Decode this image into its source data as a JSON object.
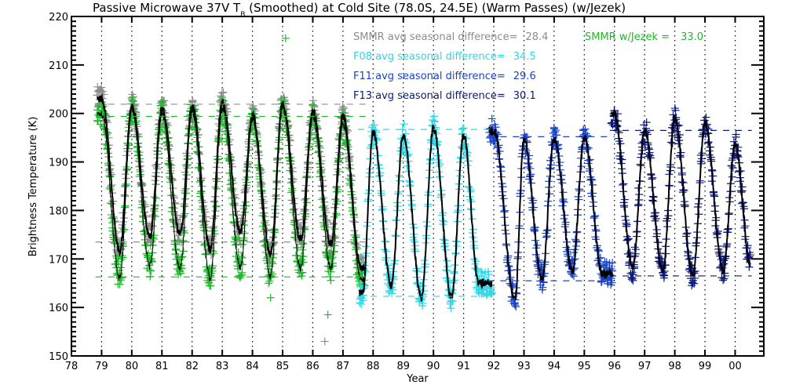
{
  "chart_data": {
    "type": "scatter",
    "title": "Passive Microwave 37V T",
    "title_subscript": "B",
    "title_rest": " (Smoothed) at Cold Site (78.0S, 24.5E) (Warm Passes) (w/Jezek)",
    "xlabel": "Year",
    "ylabel": "Brightness Temperature (K)",
    "xlim": [
      78,
      100.95
    ],
    "ylim": [
      150,
      220
    ],
    "grid": "vertical-dotted-at-years",
    "x_tick_labels": [
      "78",
      "79",
      "80",
      "81",
      "82",
      "83",
      "84",
      "85",
      "86",
      "87",
      "88",
      "89",
      "90",
      "91",
      "92",
      "93",
      "94",
      "95",
      "96",
      "97",
      "98",
      "99",
      "00"
    ],
    "y_tick_labels": [
      "150",
      "160",
      "170",
      "180",
      "190",
      "200",
      "210",
      "220"
    ],
    "y_ticks": [
      150,
      160,
      170,
      180,
      190,
      200,
      210,
      220
    ],
    "legend": [
      {
        "label": "SMMR avg seasonal difference=",
        "value": "28.4",
        "color": "#8c8c8c"
      },
      {
        "label": "SMMR w/Jezek =",
        "value": "33.0",
        "color": "#1fb82b"
      },
      {
        "label": "F08 avg seasonal difference=",
        "value": "34.5",
        "color": "#2fd6e6"
      },
      {
        "label": "F11 avg seasonal difference=",
        "value": "29.6",
        "color": "#1a44c4"
      },
      {
        "label": "F13 avg seasonal difference=",
        "value": "30.1",
        "color": "#0c1a80"
      }
    ],
    "series": [
      {
        "name": "SMMR",
        "color": "#8c8c8c",
        "x_range": [
          78.85,
          87.7
        ],
        "peaks": [
          [
            79.0,
            203
          ],
          [
            80.0,
            201.5
          ],
          [
            81.0,
            201
          ],
          [
            82.0,
            201.5
          ],
          [
            83.0,
            202.5
          ],
          [
            84.0,
            199.5
          ],
          [
            85.0,
            202
          ],
          [
            86.0,
            200.5
          ],
          [
            87.0,
            199.5
          ]
        ],
        "troughs": [
          [
            79.6,
            171.5
          ],
          [
            80.6,
            174.5
          ],
          [
            81.6,
            175
          ],
          [
            82.6,
            172
          ],
          [
            83.6,
            175.5
          ],
          [
            84.6,
            171
          ],
          [
            85.6,
            174
          ],
          [
            86.6,
            173
          ],
          [
            87.6,
            168
          ]
        ],
        "outliers": [
          [
            86.4,
            153
          ]
        ],
        "upper_mean": 201.9,
        "lower_mean": 173.5
      },
      {
        "name": "SMMR w/Jezek",
        "color": "#1fb82b",
        "x_range": [
          78.85,
          87.7
        ],
        "peaks": [
          [
            79.0,
            200
          ],
          [
            80.0,
            201
          ],
          [
            81.0,
            200
          ],
          [
            82.0,
            200.5
          ],
          [
            83.0,
            201
          ],
          [
            84.0,
            199
          ],
          [
            85.0,
            201.5
          ],
          [
            86.0,
            199.5
          ],
          [
            87.0,
            198
          ]
        ],
        "troughs": [
          [
            79.6,
            166
          ],
          [
            80.6,
            168.5
          ],
          [
            81.6,
            168
          ],
          [
            82.6,
            166
          ],
          [
            83.6,
            168
          ],
          [
            84.6,
            166.5
          ],
          [
            85.6,
            168
          ],
          [
            86.6,
            168
          ],
          [
            87.6,
            166
          ]
        ],
        "outliers": [
          [
            85.1,
            215.5
          ],
          [
            84.6,
            162
          ],
          [
            86.5,
            158.5
          ]
        ],
        "upper_mean": 199.4,
        "lower_mean": 166.3
      },
      {
        "name": "F08",
        "color": "#2fd6e6",
        "x_range": [
          87.55,
          91.95
        ],
        "peaks": [
          [
            88.0,
            196
          ],
          [
            89.0,
            195.5
          ],
          [
            90.0,
            197
          ],
          [
            91.0,
            195.5
          ]
        ],
        "troughs": [
          [
            87.65,
            163
          ],
          [
            88.6,
            164.5
          ],
          [
            89.6,
            162
          ],
          [
            90.6,
            162
          ],
          [
            91.5,
            165
          ]
        ],
        "outliers": [],
        "upper_mean": 196.7,
        "lower_mean": 162.3
      },
      {
        "name": "F11",
        "color": "#1a44c4",
        "x_range": [
          91.85,
          95.95
        ],
        "peaks": [
          [
            92.0,
            196.5
          ],
          [
            93.0,
            194.5
          ],
          [
            94.0,
            195
          ],
          [
            95.0,
            195
          ]
        ],
        "troughs": [
          [
            92.7,
            161.5
          ],
          [
            93.6,
            166
          ],
          [
            94.6,
            167.5
          ],
          [
            95.6,
            167
          ]
        ],
        "outliers": [],
        "upper_mean": 195.2,
        "lower_mean": 165.5
      },
      {
        "name": "F13",
        "color": "#0c1a80",
        "x_range": [
          95.9,
          100.5
        ],
        "peaks": [
          [
            96.0,
            200
          ],
          [
            97.0,
            196.5
          ],
          [
            98.0,
            199
          ],
          [
            99.0,
            198
          ],
          [
            100.0,
            193.5
          ]
        ],
        "troughs": [
          [
            96.6,
            168
          ],
          [
            97.6,
            167.5
          ],
          [
            98.6,
            166.5
          ],
          [
            99.6,
            167.5
          ],
          [
            100.5,
            169
          ]
        ],
        "outliers": [],
        "upper_mean": 196.5,
        "lower_mean": 166.5
      }
    ]
  }
}
